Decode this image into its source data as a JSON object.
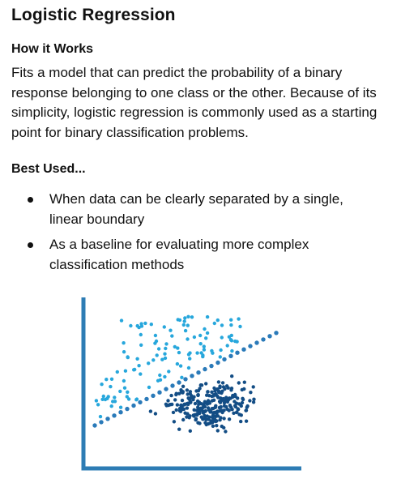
{
  "title": "Logistic Regression",
  "how_it_works": {
    "heading": "How it Works",
    "lines": [
      "Fits a model that can predict the probability of a binary",
      "response belonging to one class or the other.  Because of its",
      "simplicity, logistic regression is commonly used as a starting",
      "point for binary classification problems."
    ]
  },
  "best_used": {
    "heading": "Best Used...",
    "bullets": [
      [
        "When data can be clearly separated by a single,",
        "linear boundary"
      ],
      [
        "As a baseline for evaluating more complex",
        "classification methods"
      ]
    ]
  },
  "illustration": {
    "colors": {
      "axis": "#2d7cb4",
      "class_a": "#27a7dc",
      "class_b": "#134d85",
      "boundary": "#2a7ab9"
    }
  }
}
